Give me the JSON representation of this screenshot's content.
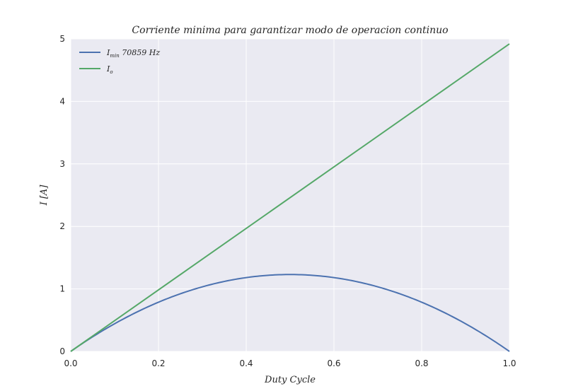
{
  "chart_data": {
    "type": "line",
    "title": "Corriente minima para garantizar modo de operacion continuo",
    "xlabel": "Duty Cycle",
    "ylabel": "I [A]",
    "xlim": [
      0.0,
      1.0
    ],
    "ylim": [
      0,
      5
    ],
    "xticks": [
      "0.0",
      "0.2",
      "0.4",
      "0.6",
      "0.8",
      "1.0"
    ],
    "yticks": [
      "0",
      "1",
      "2",
      "3",
      "4",
      "5"
    ],
    "grid": true,
    "legend_position": "top-left",
    "background": "#EAEAF2",
    "series": [
      {
        "name": "I_min 70859 Hz",
        "legend_main": "I",
        "legend_sub": "min",
        "legend_rest": " 70859 Hz",
        "color": "#4C72B0",
        "x": [
          0.0,
          0.1,
          0.2,
          0.3,
          0.4,
          0.5,
          0.6,
          0.7,
          0.8,
          0.9,
          1.0
        ],
        "y": [
          0.0,
          0.443,
          0.787,
          1.033,
          1.181,
          1.23,
          1.181,
          1.033,
          0.787,
          0.443,
          0.0
        ]
      },
      {
        "name": "I_o",
        "legend_main": "I",
        "legend_sub": "o",
        "legend_rest": "",
        "color": "#55A868",
        "x": [
          0.0,
          1.0
        ],
        "y": [
          0.0,
          4.92
        ]
      }
    ]
  }
}
